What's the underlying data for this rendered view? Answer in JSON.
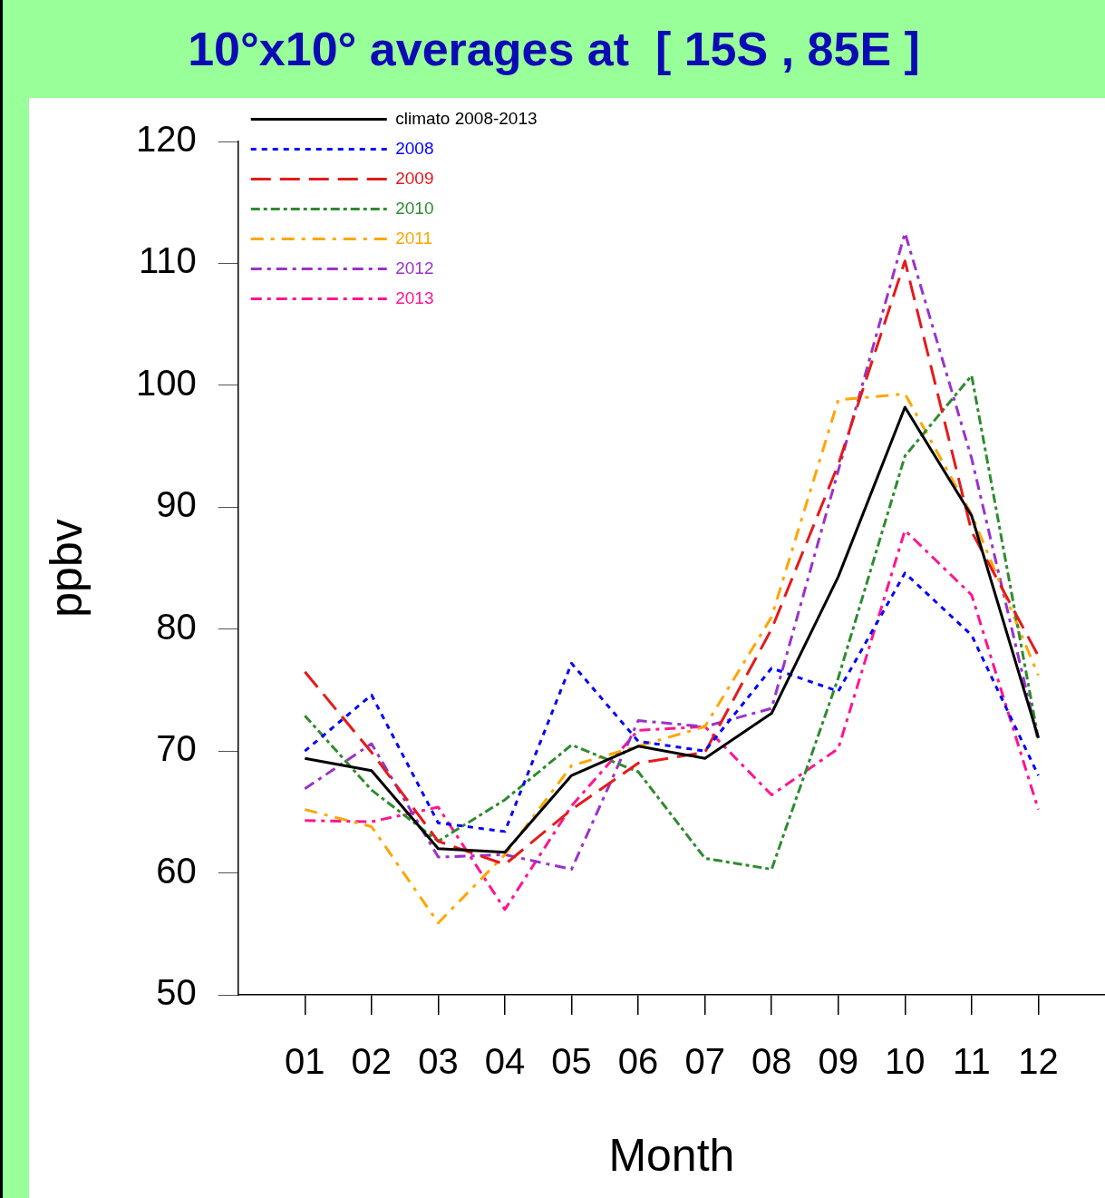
{
  "chart_data": {
    "type": "line",
    "title": "10°x10° averages at  [ 15S , 85E ]",
    "xlabel": "Month",
    "ylabel": "ppbv",
    "categories": [
      "01",
      "02",
      "03",
      "04",
      "05",
      "06",
      "07",
      "08",
      "09",
      "10",
      "11",
      "12"
    ],
    "ylim": [
      50,
      120
    ],
    "yticks": [
      50,
      60,
      70,
      80,
      90,
      100,
      110,
      120
    ],
    "grid": false,
    "legend": "top left",
    "marker": "none",
    "series": [
      {
        "name": "climato 2008-2013",
        "color": "#000000",
        "line_style": "solid",
        "values": [
          69.4,
          68.4,
          62.0,
          61.7,
          68.0,
          70.4,
          69.4,
          73.1,
          84.3,
          98.2,
          89.3,
          71.1
        ]
      },
      {
        "name": "2008",
        "color": "#0000ff",
        "line_style": "dotted",
        "values": [
          70.0,
          74.6,
          64.1,
          63.4,
          77.2,
          70.8,
          70.0,
          76.8,
          74.9,
          84.6,
          79.5,
          68.0
        ]
      },
      {
        "name": "2009",
        "color": "#e41a1c",
        "line_style": "dashed",
        "values": [
          76.5,
          69.9,
          62.6,
          60.7,
          65.2,
          69.0,
          69.9,
          80.0,
          93.5,
          110.2,
          88.0,
          77.8
        ]
      },
      {
        "name": "2010",
        "color": "#2e8b2e",
        "line_style": "dashed",
        "values": [
          72.9,
          66.8,
          62.6,
          66.0,
          70.5,
          68.3,
          61.2,
          60.3,
          76.0,
          94.2,
          100.8,
          71.0
        ]
      },
      {
        "name": "2011",
        "color": "#ffa500",
        "line_style": "dashed",
        "values": [
          65.2,
          63.8,
          55.9,
          61.5,
          68.8,
          70.4,
          72.0,
          81.0,
          98.8,
          99.3,
          89.4,
          76.2
        ]
      },
      {
        "name": "2012",
        "color": "#9932cc",
        "line_style": "dashed",
        "values": [
          66.9,
          70.6,
          61.3,
          61.5,
          60.3,
          72.5,
          72.0,
          73.5,
          93.0,
          112.5,
          94.0,
          70.8
        ]
      },
      {
        "name": "2013",
        "color": "#ff1493",
        "line_style": "dashed",
        "values": [
          64.3,
          64.2,
          65.4,
          57.0,
          65.5,
          71.7,
          72.0,
          66.4,
          70.2,
          88.1,
          82.8,
          65.2
        ]
      }
    ]
  }
}
